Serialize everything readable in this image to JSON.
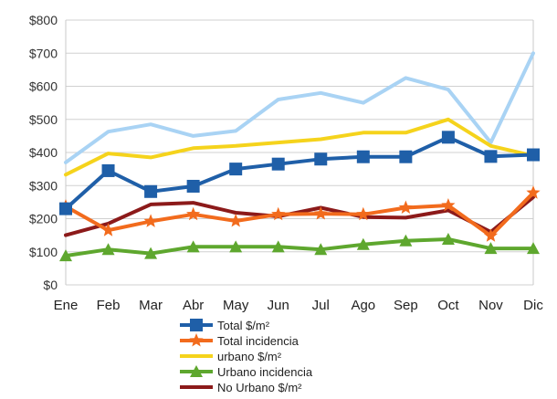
{
  "chart_data": {
    "type": "line",
    "categories": [
      "Ene",
      "Feb",
      "Mar",
      "Abr",
      "May",
      "Jun",
      "Jul",
      "Ago",
      "Sep",
      "Oct",
      "Nov",
      "Dic"
    ],
    "ylim": [
      0,
      800
    ],
    "yticks": [
      "$0",
      "$100",
      "$200",
      "$300",
      "$400",
      "$500",
      "$600",
      "$700",
      "$800"
    ],
    "grid": true,
    "legend_position": "bottom",
    "series": [
      {
        "name": "Total $/m²",
        "color": "#1f5fa8",
        "marker": "square",
        "values": [
          230,
          345,
          282,
          298,
          350,
          365,
          380,
          387,
          387,
          446,
          388,
          393
        ]
      },
      {
        "name": "Total incidencia",
        "color": "#f26b1d",
        "marker": "star",
        "values": [
          237,
          165,
          192,
          213,
          193,
          213,
          215,
          213,
          233,
          240,
          148,
          278
        ]
      },
      {
        "name": "urbano $/m²",
        "color": "#f5d31c",
        "marker": "none",
        "values": [
          333,
          397,
          385,
          413,
          420,
          430,
          440,
          460,
          460,
          500,
          420,
          390
        ]
      },
      {
        "name": "Urbano incidencia",
        "color": "#5ea72e",
        "marker": "triangle",
        "values": [
          88,
          107,
          95,
          115,
          115,
          115,
          107,
          122,
          133,
          138,
          110,
          110
        ]
      },
      {
        "name": "No Urbano $/m²",
        "color": "#8c1a1a",
        "marker": "none",
        "values": [
          150,
          185,
          243,
          248,
          218,
          207,
          233,
          205,
          203,
          225,
          160,
          265
        ]
      },
      {
        "name": "",
        "color": "#a9d3f4",
        "marker": "none",
        "values": [
          370,
          463,
          485,
          450,
          465,
          560,
          580,
          550,
          625,
          590,
          430,
          700
        ]
      }
    ]
  }
}
